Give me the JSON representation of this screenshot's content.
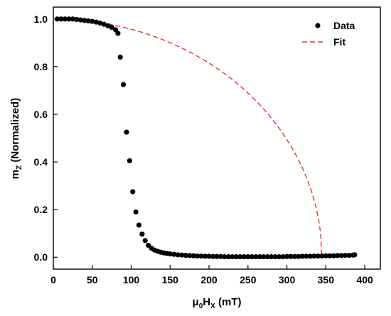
{
  "chart_data": {
    "type": "scatter",
    "xlabel": {
      "main": "μ",
      "sub0": "0",
      "mid": "H",
      "sub1": "X",
      "tail": " (mT)"
    },
    "ylabel": {
      "main": "m",
      "sub": "Z",
      "tail": " (Normalized)"
    },
    "xlim": [
      0,
      420
    ],
    "ylim": [
      -0.05,
      1.05
    ],
    "xticks": [
      0,
      50,
      100,
      150,
      200,
      250,
      300,
      350,
      400
    ],
    "yticks": [
      0.0,
      0.2,
      0.4,
      0.6,
      0.8,
      1.0
    ],
    "ytick_labels": [
      "0.0",
      "0.2",
      "0.4",
      "0.6",
      "0.8",
      "1.0"
    ],
    "legend": {
      "position": "top-right",
      "entries": [
        "Data",
        "Fit"
      ]
    },
    "series": [
      {
        "name": "Data",
        "style": "markers",
        "color": "#000000",
        "x": [
          5,
          10,
          15,
          20,
          25,
          30,
          35,
          40,
          45,
          50,
          55,
          60,
          65,
          70,
          75,
          80,
          83,
          86,
          90,
          94,
          98,
          102,
          106,
          110,
          114,
          118,
          122,
          126,
          130,
          134,
          138,
          142,
          146,
          150,
          155,
          160,
          165,
          170,
          175,
          180,
          185,
          190,
          195,
          200,
          205,
          210,
          215,
          220,
          225,
          230,
          235,
          240,
          245,
          250,
          255,
          260,
          265,
          270,
          275,
          280,
          285,
          290,
          295,
          300,
          305,
          310,
          315,
          320,
          325,
          330,
          335,
          340,
          345,
          350,
          355,
          360,
          365,
          370,
          375,
          380,
          385,
          387
        ],
        "y": [
          1.0,
          1.0,
          1.0,
          1.0,
          1.0,
          0.998,
          0.996,
          0.994,
          0.992,
          0.99,
          0.987,
          0.983,
          0.978,
          0.972,
          0.965,
          0.955,
          0.94,
          0.84,
          0.725,
          0.525,
          0.405,
          0.275,
          0.19,
          0.135,
          0.097,
          0.07,
          0.05,
          0.038,
          0.03,
          0.025,
          0.021,
          0.018,
          0.016,
          0.014,
          0.012,
          0.01,
          0.009,
          0.008,
          0.007,
          0.006,
          0.005,
          0.005,
          0.004,
          0.004,
          0.003,
          0.003,
          0.003,
          0.002,
          0.002,
          0.002,
          0.002,
          0.002,
          0.002,
          0.002,
          0.002,
          0.002,
          0.002,
          0.002,
          0.002,
          0.002,
          0.002,
          0.002,
          0.002,
          0.003,
          0.003,
          0.003,
          0.003,
          0.004,
          0.004,
          0.004,
          0.005,
          0.005,
          0.005,
          0.006,
          0.006,
          0.006,
          0.007,
          0.007,
          0.008,
          0.008,
          0.009,
          0.01
        ]
      },
      {
        "name": "Fit",
        "style": "dashed-line",
        "color": "#e8322f",
        "model": "sqrt(1 - (x/Hk)^2)",
        "Hk": 345,
        "x_range": [
          0,
          345
        ]
      }
    ]
  }
}
